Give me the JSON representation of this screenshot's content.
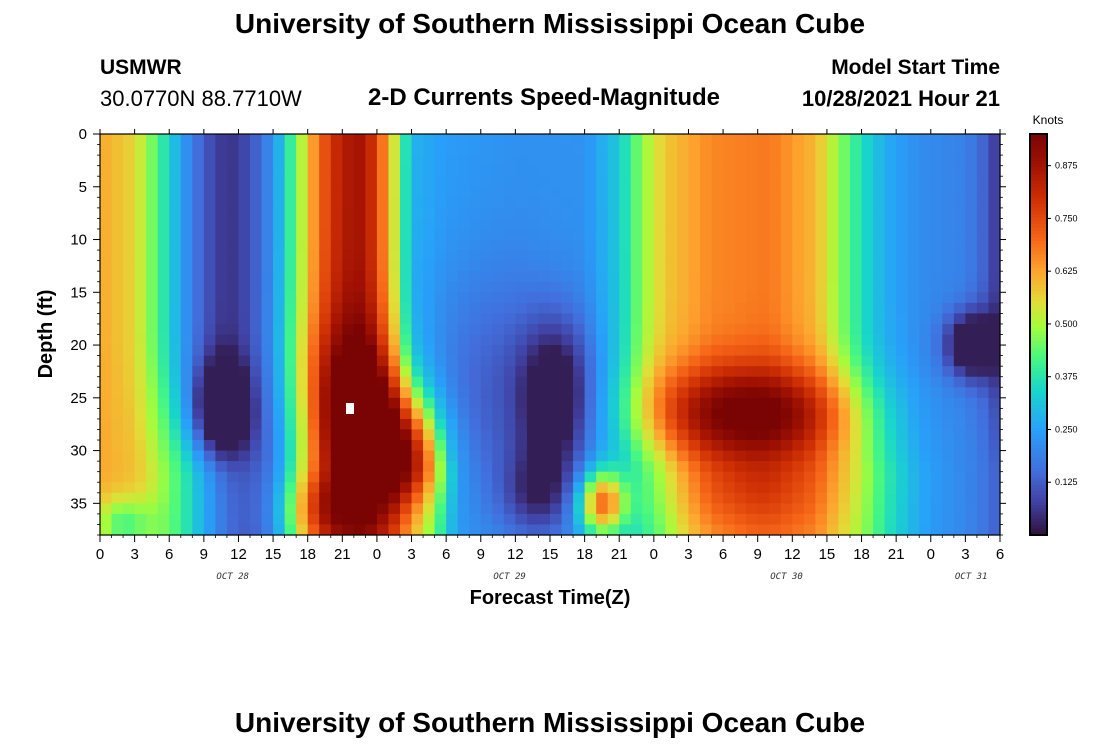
{
  "title": "University of Southern Mississippi Ocean Cube",
  "bottom_title": "University of Southern Mississippi Ocean Cube",
  "station": {
    "name": "USMWR",
    "coords": "30.0770N  88.7710W"
  },
  "subtitle": "2-D Currents Speed-Magnitude",
  "model_start": {
    "label": "Model Start Time",
    "value": "10/28/2021 Hour 21"
  },
  "chart_data": {
    "type": "heatmap",
    "title": "2-D Currents Speed-Magnitude",
    "xlabel": "Forecast Time(Z)",
    "ylabel": "Depth (ft)",
    "x_hours_range": [
      0,
      78
    ],
    "x_tick_labels": [
      "0",
      "3",
      "6",
      "9",
      "12",
      "15",
      "18",
      "21",
      "0",
      "3",
      "6",
      "9",
      "12",
      "15",
      "18",
      "21",
      "0",
      "3",
      "6",
      "9",
      "12",
      "15",
      "18",
      "21",
      "0",
      "3",
      "6"
    ],
    "day_labels": [
      {
        "label": "OCT 28",
        "hour": 11.5
      },
      {
        "label": "OCT 29",
        "hour": 35.5
      },
      {
        "label": "OCT 30",
        "hour": 59.5
      },
      {
        "label": "OCT 31",
        "hour": 75.5
      }
    ],
    "ylim": [
      0,
      38
    ],
    "y_ticks": [
      0,
      5,
      10,
      15,
      20,
      25,
      30,
      35
    ],
    "y_reversed": true,
    "colorbar": {
      "title": "Knots",
      "range": [
        0,
        0.95
      ],
      "ticks": [
        "0.125",
        "0.250",
        "0.375",
        "0.500",
        "0.625",
        "0.750",
        "0.875"
      ]
    },
    "surface_profile_knots": [
      {
        "h": 0,
        "v": 0.62
      },
      {
        "h": 3,
        "v": 0.56
      },
      {
        "h": 5,
        "v": 0.42
      },
      {
        "h": 7,
        "v": 0.25
      },
      {
        "h": 9,
        "v": 0.12
      },
      {
        "h": 11,
        "v": 0.05
      },
      {
        "h": 13,
        "v": 0.1
      },
      {
        "h": 15,
        "v": 0.22
      },
      {
        "h": 17,
        "v": 0.45
      },
      {
        "h": 19,
        "v": 0.7
      },
      {
        "h": 21,
        "v": 0.85
      },
      {
        "h": 23,
        "v": 0.87
      },
      {
        "h": 25,
        "v": 0.62
      },
      {
        "h": 27,
        "v": 0.28
      },
      {
        "h": 30,
        "v": 0.24
      },
      {
        "h": 36,
        "v": 0.22
      },
      {
        "h": 42,
        "v": 0.22
      },
      {
        "h": 45,
        "v": 0.32
      },
      {
        "h": 47,
        "v": 0.48
      },
      {
        "h": 49,
        "v": 0.58
      },
      {
        "h": 53,
        "v": 0.66
      },
      {
        "h": 58,
        "v": 0.68
      },
      {
        "h": 62,
        "v": 0.6
      },
      {
        "h": 64,
        "v": 0.48
      },
      {
        "h": 66,
        "v": 0.36
      },
      {
        "h": 68,
        "v": 0.27
      },
      {
        "h": 71,
        "v": 0.21
      },
      {
        "h": 75,
        "v": 0.19
      },
      {
        "h": 77,
        "v": 0.12
      },
      {
        "h": 78,
        "v": 0.04
      }
    ],
    "features": [
      {
        "name": "night-low-oct28",
        "hour": 10.5,
        "depth": 26,
        "knots": 0.06
      },
      {
        "name": "core-max",
        "hour": 22.5,
        "depth": 28,
        "knots": 0.92
      },
      {
        "name": "deep-max-oct28",
        "hour": 19,
        "depth": 36,
        "knots": 0.82
      },
      {
        "name": "night-low-oct29",
        "hour": 39.5,
        "depth": 25,
        "knots": 0.05
      },
      {
        "name": "bottom-max-oct29",
        "hour": 43.5,
        "depth": 35,
        "knots": 0.7
      },
      {
        "name": "wide-max-oct30",
        "hour": 58,
        "depth": 26,
        "knots": 0.82
      },
      {
        "name": "low-oct31",
        "hour": 75.5,
        "depth": 20,
        "knots": 0.06
      }
    ]
  }
}
